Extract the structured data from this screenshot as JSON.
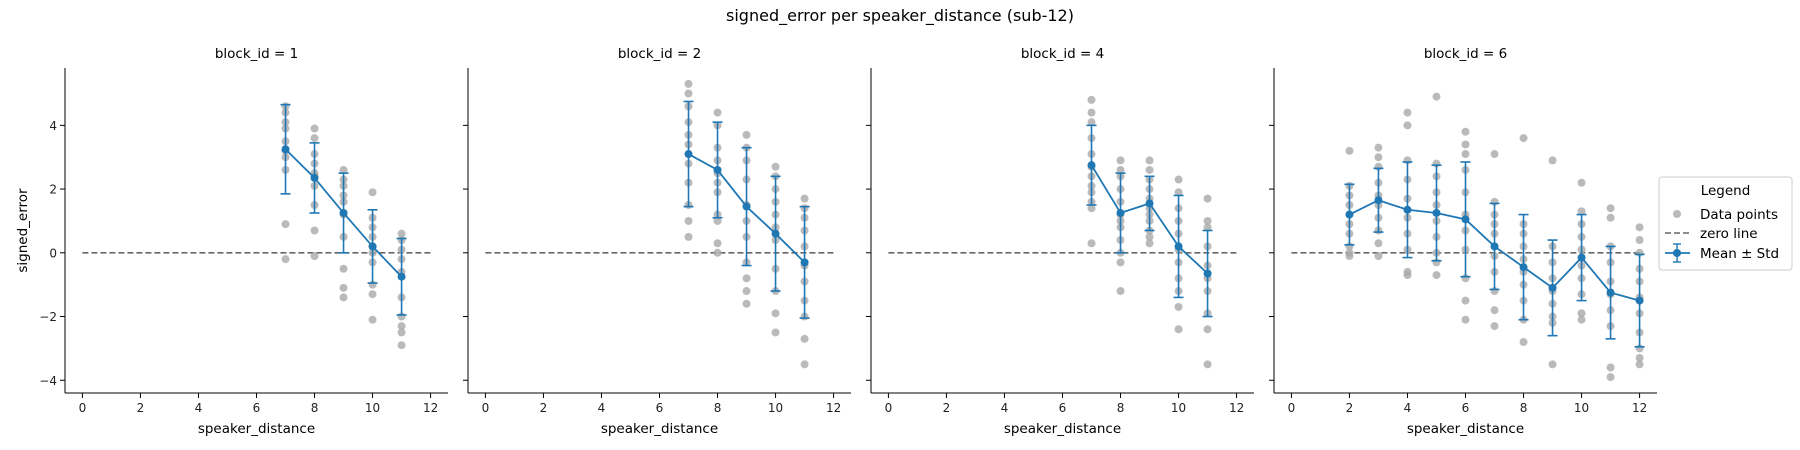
{
  "chart_data": {
    "type": "scatter",
    "title": "signed_error per speaker_distance (sub-12)",
    "xlabel": "speaker_distance",
    "ylabel": "signed_error",
    "xlim": [
      -0.6,
      12.6
    ],
    "ylim": [
      -4.4,
      5.8
    ],
    "xticks": [
      "0",
      "2",
      "4",
      "6",
      "8",
      "10",
      "12"
    ],
    "yticks": [
      "−4",
      "−2",
      "0",
      "2",
      "4"
    ],
    "colors": {
      "points": "#a9a9a9",
      "mean": "#1f77b4",
      "zero_line": "#666666"
    },
    "legend": {
      "title": "Legend",
      "placement": "right",
      "entries": [
        "Data points",
        "zero line",
        "Mean ± Std"
      ]
    },
    "panels": [
      {
        "title": "block_id = 1",
        "mean": [
          {
            "x": 7,
            "y": 3.25,
            "std": 1.4
          },
          {
            "x": 8,
            "y": 2.35,
            "std": 1.1
          },
          {
            "x": 9,
            "y": 1.25,
            "std": 1.25
          },
          {
            "x": 10,
            "y": 0.2,
            "std": 1.15
          },
          {
            "x": 11,
            "y": -0.75,
            "std": 1.2
          }
        ],
        "points": [
          {
            "x": 7,
            "y": [
              4.6,
              4.4,
              4.1,
              3.9,
              3.5,
              3.2,
              3.0,
              2.6,
              0.9,
              -0.2
            ]
          },
          {
            "x": 8,
            "y": [
              3.9,
              3.6,
              3.1,
              2.8,
              2.5,
              2.4,
              2.1,
              1.5,
              0.7,
              -0.1
            ]
          },
          {
            "x": 9,
            "y": [
              2.6,
              2.3,
              2.1,
              1.8,
              1.6,
              1.2,
              0.5,
              -0.5,
              -1.1,
              -1.4
            ]
          },
          {
            "x": 10,
            "y": [
              1.9,
              1.1,
              0.8,
              0.5,
              0.2,
              0.0,
              -0.3,
              -1.0,
              -1.3,
              -2.1
            ]
          },
          {
            "x": 11,
            "y": [
              0.6,
              0.4,
              0.1,
              -0.2,
              -0.6,
              -1.4,
              -2.0,
              -2.3,
              -2.5,
              -2.9
            ]
          }
        ]
      },
      {
        "title": "block_id = 2",
        "mean": [
          {
            "x": 7,
            "y": 3.1,
            "std": 1.65
          },
          {
            "x": 8,
            "y": 2.6,
            "std": 1.5
          },
          {
            "x": 9,
            "y": 1.45,
            "std": 1.85
          },
          {
            "x": 10,
            "y": 0.6,
            "std": 1.8
          },
          {
            "x": 11,
            "y": -0.3,
            "std": 1.75
          }
        ],
        "points": [
          {
            "x": 7,
            "y": [
              5.3,
              5.0,
              4.6,
              4.1,
              3.7,
              3.4,
              2.8,
              2.2,
              1.5,
              1.0,
              0.5
            ]
          },
          {
            "x": 8,
            "y": [
              4.4,
              4.0,
              3.3,
              2.9,
              2.5,
              2.2,
              1.9,
              1.2,
              1.0,
              0.3,
              0.0
            ]
          },
          {
            "x": 9,
            "y": [
              3.7,
              3.3,
              2.9,
              2.3,
              1.5,
              1.0,
              0.5,
              -0.3,
              -0.8,
              -1.2,
              -1.6
            ]
          },
          {
            "x": 10,
            "y": [
              2.7,
              2.4,
              2.0,
              1.6,
              1.2,
              0.8,
              0.4,
              -0.5,
              -1.2,
              -1.9,
              -2.5
            ]
          },
          {
            "x": 11,
            "y": [
              1.7,
              1.4,
              1.1,
              0.7,
              0.2,
              -0.4,
              -0.9,
              -1.5,
              -2.0,
              -2.7,
              -3.5
            ]
          }
        ]
      },
      {
        "title": "block_id = 4",
        "mean": [
          {
            "x": 7,
            "y": 2.75,
            "std": 1.25
          },
          {
            "x": 8,
            "y": 1.25,
            "std": 1.25
          },
          {
            "x": 9,
            "y": 1.55,
            "std": 0.85
          },
          {
            "x": 10,
            "y": 0.2,
            "std": 1.6
          },
          {
            "x": 11,
            "y": -0.65,
            "std": 1.35
          }
        ],
        "points": [
          {
            "x": 7,
            "y": [
              4.8,
              4.4,
              4.1,
              3.6,
              3.1,
              2.7,
              2.4,
              2.1,
              1.9,
              1.6,
              1.4,
              0.3
            ]
          },
          {
            "x": 8,
            "y": [
              2.9,
              2.6,
              2.4,
              2.0,
              1.6,
              1.2,
              1.0,
              0.8,
              0.4,
              0.0,
              -0.3,
              -1.2
            ]
          },
          {
            "x": 9,
            "y": [
              2.9,
              2.6,
              2.3,
              2.0,
              1.7,
              1.4,
              1.2,
              1.0,
              0.7,
              0.5,
              0.3
            ]
          },
          {
            "x": 10,
            "y": [
              2.3,
              1.9,
              1.4,
              1.0,
              0.6,
              0.1,
              -0.3,
              -0.8,
              -1.2,
              -1.7,
              -2.4
            ]
          },
          {
            "x": 11,
            "y": [
              1.7,
              1.0,
              0.8,
              0.2,
              -0.4,
              -0.8,
              -1.2,
              -1.9,
              -2.4,
              -3.5
            ]
          }
        ]
      },
      {
        "title": "block_id = 6",
        "mean": [
          {
            "x": 2,
            "y": 1.2,
            "std": 0.95
          },
          {
            "x": 3,
            "y": 1.65,
            "std": 1.0
          },
          {
            "x": 4,
            "y": 1.35,
            "std": 1.5
          },
          {
            "x": 5,
            "y": 1.25,
            "std": 1.5
          },
          {
            "x": 6,
            "y": 1.05,
            "std": 1.8
          },
          {
            "x": 7,
            "y": 0.2,
            "std": 1.35
          },
          {
            "x": 8,
            "y": -0.45,
            "std": 1.65
          },
          {
            "x": 9,
            "y": -1.1,
            "std": 1.5
          },
          {
            "x": 10,
            "y": -0.15,
            "std": 1.35
          },
          {
            "x": 11,
            "y": -1.25,
            "std": 1.45
          },
          {
            "x": 12,
            "y": -1.5,
            "std": 1.45
          }
        ],
        "points": [
          {
            "x": 2,
            "y": [
              3.2,
              2.1,
              1.8,
              1.5,
              1.2,
              0.9,
              0.6,
              0.2,
              0.0,
              -0.1
            ]
          },
          {
            "x": 3,
            "y": [
              3.3,
              3.0,
              2.7,
              2.2,
              1.8,
              1.5,
              1.1,
              0.7,
              0.3,
              -0.1
            ]
          },
          {
            "x": 4,
            "y": [
              4.4,
              4.0,
              2.9,
              2.3,
              1.7,
              1.1,
              0.6,
              0.1,
              -0.6,
              -0.7
            ]
          },
          {
            "x": 5,
            "y": [
              4.9,
              2.8,
              2.4,
              1.9,
              1.5,
              1.0,
              0.5,
              0.0,
              -0.3,
              -0.7
            ]
          },
          {
            "x": 6,
            "y": [
              3.8,
              3.4,
              3.1,
              2.6,
              1.9,
              1.2,
              0.7,
              0.1,
              -0.8,
              -1.5,
              -2.1
            ]
          },
          {
            "x": 7,
            "y": [
              3.1,
              1.6,
              1.2,
              0.9,
              0.6,
              0.2,
              -0.1,
              -0.6,
              -1.2,
              -1.8,
              -2.3
            ]
          },
          {
            "x": 8,
            "y": [
              3.6,
              0.9,
              0.6,
              0.2,
              -0.2,
              -0.6,
              -1.0,
              -1.5,
              -2.1,
              -2.8
            ]
          },
          {
            "x": 9,
            "y": [
              2.9,
              0.2,
              -0.3,
              -0.8,
              -1.2,
              -1.6,
              -2.0,
              -2.2,
              -3.5
            ]
          },
          {
            "x": 10,
            "y": [
              2.2,
              1.3,
              0.9,
              0.5,
              0.1,
              -0.4,
              -0.8,
              -1.3,
              -1.9,
              -2.1
            ]
          },
          {
            "x": 11,
            "y": [
              1.4,
              1.1,
              0.2,
              -0.3,
              -0.9,
              -1.3,
              -1.8,
              -2.3,
              -3.6,
              -3.9
            ]
          },
          {
            "x": 12,
            "y": [
              0.8,
              0.4,
              0.0,
              -0.5,
              -0.9,
              -1.4,
              -1.9,
              -2.5,
              -3.0,
              -3.3,
              -3.5
            ]
          }
        ]
      }
    ]
  }
}
